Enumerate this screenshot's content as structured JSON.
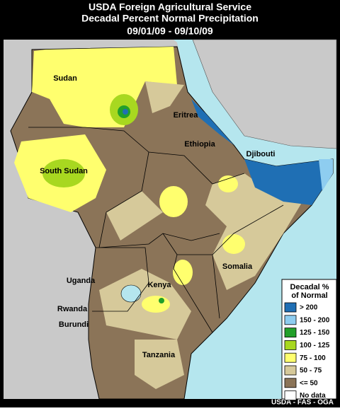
{
  "header": {
    "lines": [
      "USDA Foreign Agricultural Service",
      "Decadal Percent Normal Precipitation",
      "09/01/09 - 09/10/09"
    ]
  },
  "labels": [
    "Sudan",
    "Eritrea",
    "Ethiopia",
    "Djibouti",
    "South Sudan",
    "Somalia",
    "Uganda",
    "Kenya",
    "Rwanda",
    "Burundi",
    "Tanzania"
  ],
  "legend": {
    "title": [
      "Decadal %",
      "of Normal"
    ],
    "items": [
      {
        "label": "> 200",
        "color": "#1f6fb4"
      },
      {
        "label": "150 - 200",
        "color": "#8ecdf0"
      },
      {
        "label": "125 - 150",
        "color": "#22a02a"
      },
      {
        "label": "100 - 125",
        "color": "#a8d820"
      },
      {
        "label": "75 - 100",
        "color": "#ffff6e"
      },
      {
        "label": "50 -  75",
        "color": "#d6c99a"
      },
      {
        "label": "<= 50",
        "color": "#8b7458"
      },
      {
        "label": "No data",
        "color": "#ffffff"
      }
    ]
  },
  "credit": "USDA - FAS - OGA"
}
